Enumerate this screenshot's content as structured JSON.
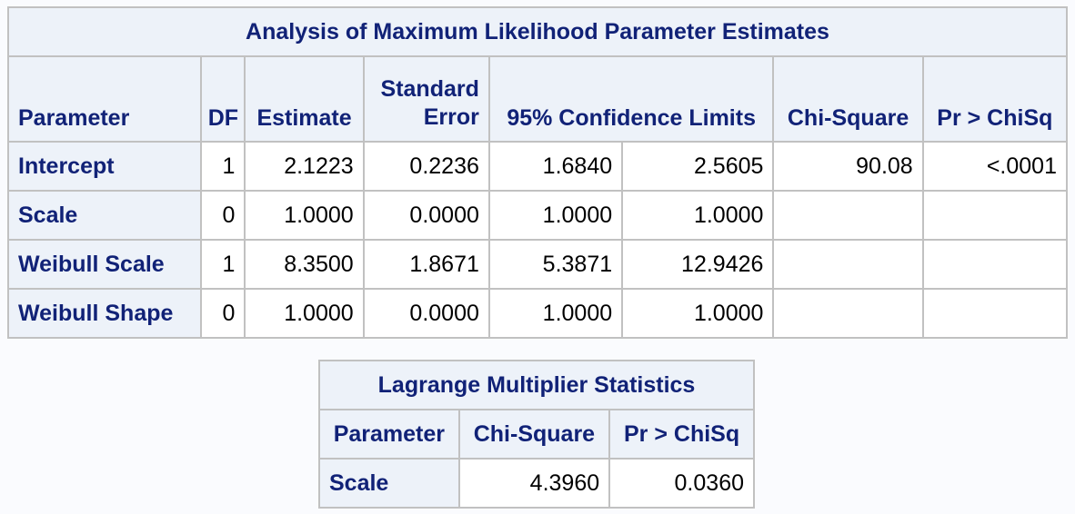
{
  "mle_table": {
    "title": "Analysis of Maximum Likelihood Parameter Estimates",
    "headers": {
      "parameter": "Parameter",
      "df": "DF",
      "estimate": "Estimate",
      "std_error_line1": "Standard",
      "std_error_line2": "Error",
      "conf_limits": "95% Confidence Limits",
      "chi_square": "Chi-Square",
      "pr_chisq": "Pr > ChiSq"
    },
    "rows": [
      {
        "parameter": "Intercept",
        "df": "1",
        "estimate": "2.1223",
        "std_error": "0.2236",
        "lower": "1.6840",
        "upper": "2.5605",
        "chi_square": "90.08",
        "pr_chisq": "<.0001"
      },
      {
        "parameter": "Scale",
        "df": "0",
        "estimate": "1.0000",
        "std_error": "0.0000",
        "lower": "1.0000",
        "upper": "1.0000",
        "chi_square": "",
        "pr_chisq": ""
      },
      {
        "parameter": "Weibull Scale",
        "df": "1",
        "estimate": "8.3500",
        "std_error": "1.8671",
        "lower": "5.3871",
        "upper": "12.9426",
        "chi_square": "",
        "pr_chisq": ""
      },
      {
        "parameter": "Weibull Shape",
        "df": "0",
        "estimate": "1.0000",
        "std_error": "0.0000",
        "lower": "1.0000",
        "upper": "1.0000",
        "chi_square": "",
        "pr_chisq": ""
      }
    ]
  },
  "lm_table": {
    "title": "Lagrange Multiplier Statistics",
    "headers": {
      "parameter": "Parameter",
      "chi_square": "Chi-Square",
      "pr_chisq": "Pr > ChiSq"
    },
    "rows": [
      {
        "parameter": "Scale",
        "chi_square": "4.3960",
        "pr_chisq": "0.0360"
      }
    ]
  }
}
